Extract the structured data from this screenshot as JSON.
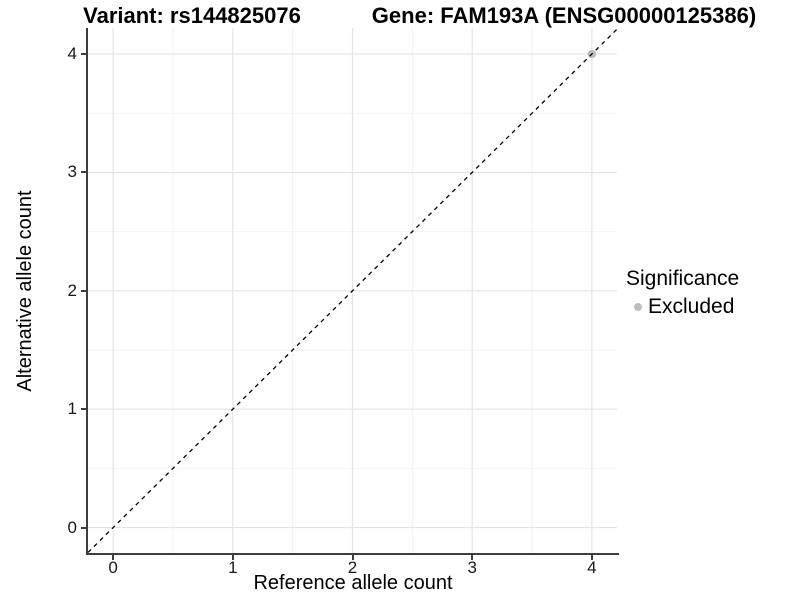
{
  "chart_data": {
    "type": "scatter",
    "titles": [
      "Variant: rs144825076",
      "Gene: FAM193A (ENSG00000125386)"
    ],
    "xlabel": "Reference allele count",
    "ylabel": "Alternative allele count",
    "x_ticks": [
      0,
      1,
      2,
      3,
      4
    ],
    "y_ticks": [
      0,
      1,
      2,
      3,
      4
    ],
    "xlim": [
      -0.21,
      4.21
    ],
    "ylim": [
      -0.215,
      4.22
    ],
    "grid": "major+minor",
    "legend_position": "right",
    "identity_line": {
      "slope": 1,
      "intercept": 0,
      "style": "dashed",
      "color": "#000000"
    },
    "series": [
      {
        "name": "Excluded",
        "color": "#bdbdbd",
        "points": [
          {
            "x": 4,
            "y": 4
          }
        ]
      }
    ],
    "legend": {
      "title": "Significance",
      "items": [
        {
          "label": "Excluded",
          "color": "#bdbdbd"
        }
      ]
    }
  },
  "colors": {
    "background": "#ffffff",
    "axis_line": "#3d3d3d",
    "grid_major": "#e4e4e4",
    "grid_minor": "#f2f2f2",
    "tick_label": "#1a1a1a",
    "point": "#bdbdbd"
  }
}
